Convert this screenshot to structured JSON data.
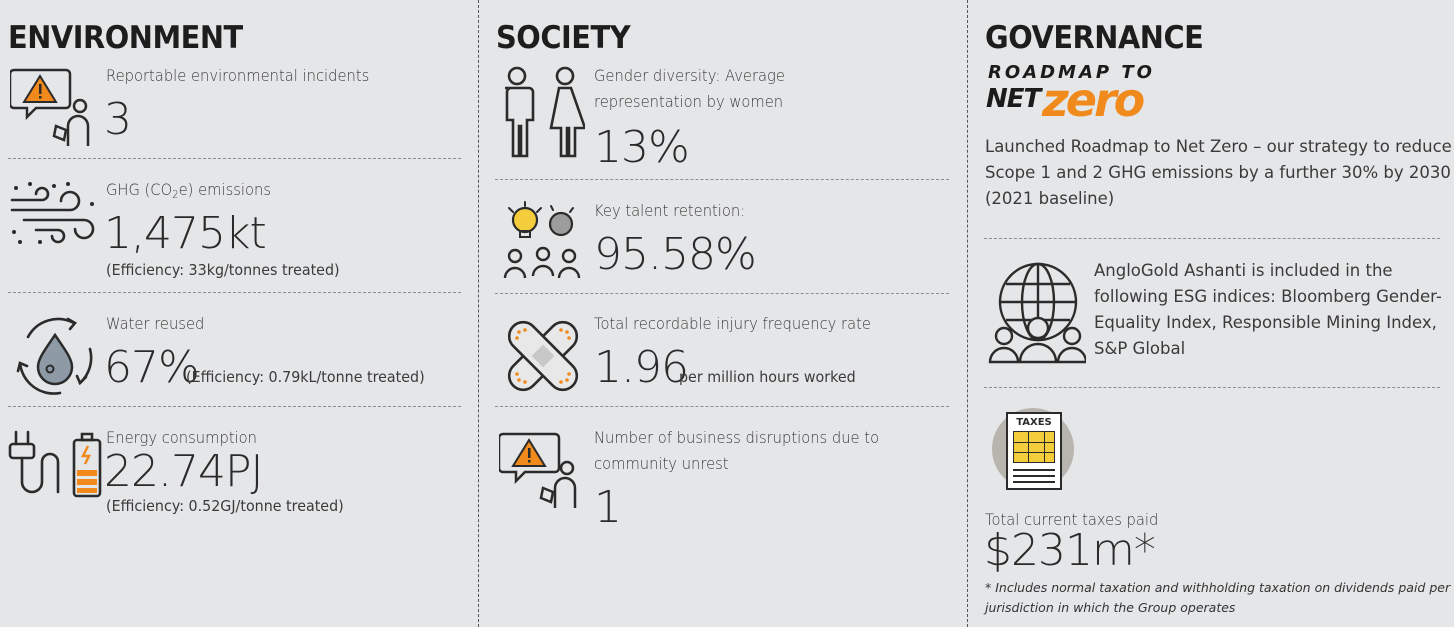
{
  "environment": {
    "heading": "ENVIRONMENT",
    "incidents": {
      "label": "Reportable environmental incidents",
      "value": "3"
    },
    "ghg": {
      "label_pre": "GHG (CO",
      "label_sub": "2",
      "label_post": "e) emissions",
      "value": "1,475kt",
      "note": "(Efficiency: 33kg/tonnes treated)"
    },
    "water": {
      "label": "Water reused",
      "value": "67%",
      "note": "(Efficiency: 0.79kL/tonne treated)"
    },
    "energy": {
      "label": "Energy consumption",
      "value": "22.74PJ",
      "note": "(Efficiency: 0.52GJ/tonne treated)"
    }
  },
  "society": {
    "heading": "SOCIETY",
    "gender": {
      "label_line1": "Gender diversity: Average",
      "label_line2": "representation by women",
      "value": "13%"
    },
    "talent": {
      "label": "Key talent retention:",
      "value": "95.58%"
    },
    "injury": {
      "label": "Total recordable injury frequency rate",
      "value": "1.96",
      "unit": "per million hours worked"
    },
    "disruptions": {
      "label_line1": "Number of business disruptions due to",
      "label_line2": "community unrest",
      "value": "1"
    }
  },
  "governance": {
    "heading": "GOVERNANCE",
    "logo": {
      "line1": "ROADMAP TO",
      "net": "NET",
      "zero": "zero"
    },
    "netzero_text": [
      "Launched Roadmap to Net Zero – our strategy to reduce",
      "Scope 1 and 2 GHG emissions by a further 30% by 2030",
      "(2021 baseline)"
    ],
    "indices_text": [
      "AngloGold Ashanti is included in the",
      "following ESG indices: Bloomberg Gender-",
      "Equality Index, Responsible Mining Index,",
      "S&P Global"
    ],
    "taxes_icon_label": "TAXES",
    "taxes": {
      "label": "Total current taxes paid",
      "value": "$231m*"
    },
    "footnote": [
      "* Includes normal taxation and withholding taxation on dividends paid per",
      "jurisdiction in which the Group operates"
    ]
  },
  "colors": {
    "accent_orange": "#f08a1c",
    "background": "#e5e6e8",
    "icon_stroke": "#2b2b2b",
    "tax_yellow": "#f4cd3c"
  }
}
